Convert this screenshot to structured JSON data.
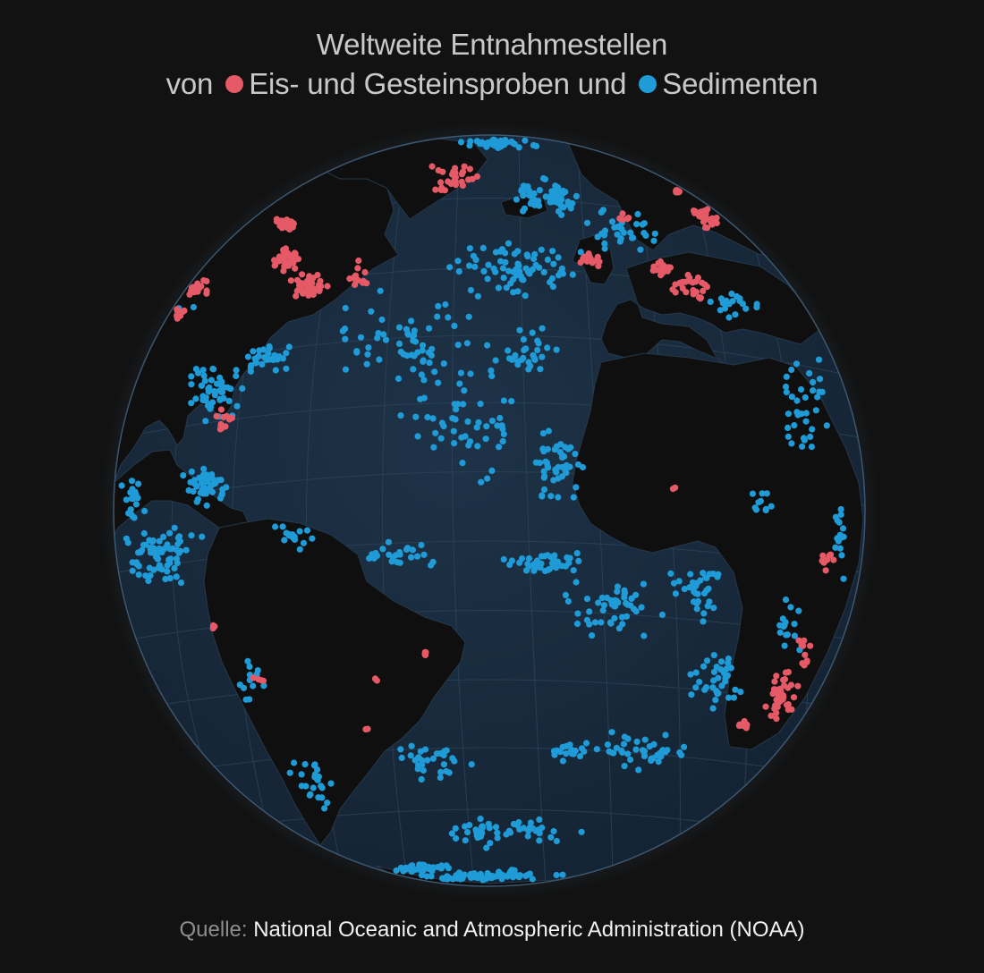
{
  "title": {
    "line1": "Weltweite Entnahmestellen",
    "line2_prefix": "von",
    "legend": [
      {
        "label": "Eis- und Gesteinsproben und",
        "color": "#e55a66"
      },
      {
        "label": "Sedimenten",
        "color": "#1f9bd7"
      }
    ]
  },
  "source": {
    "label": "Quelle:",
    "value": "National Oceanic and Atmospheric Administration (NOAA)"
  },
  "colors": {
    "background": "#121212",
    "ocean": "#192a3c",
    "land": "#0f0f0f",
    "graticule": "#2d4458",
    "rim": "#3c5770"
  },
  "map": {
    "projection": "orthographic",
    "center": "North Atlantic",
    "graticule": true
  }
}
